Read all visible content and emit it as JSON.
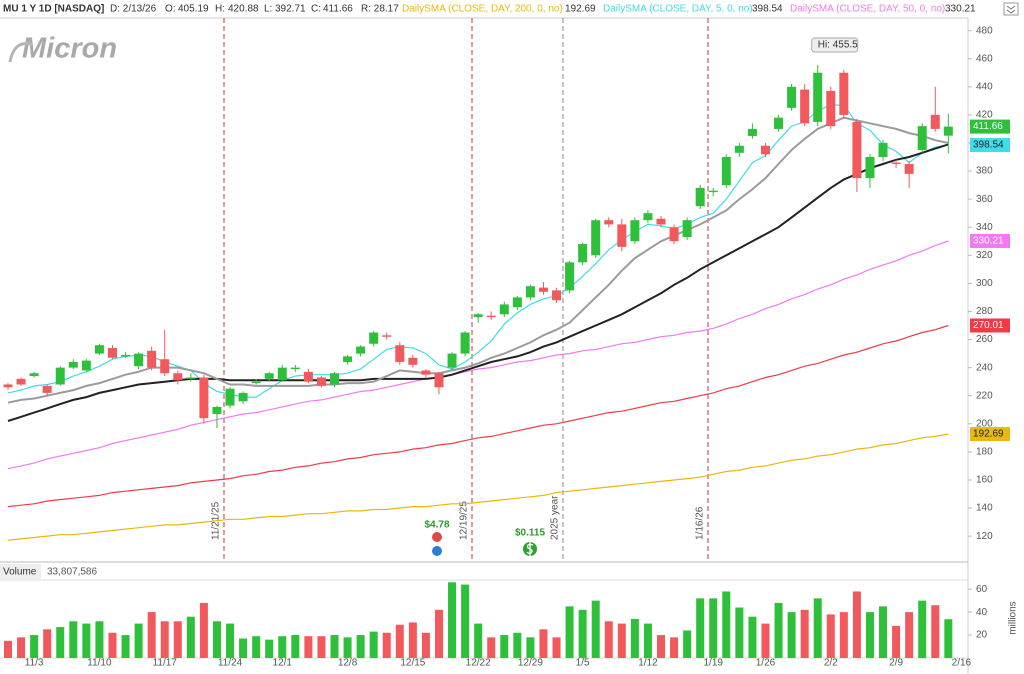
{
  "header": {
    "symbol": "MU 1 Y 1D [NASDAQ]",
    "date": "D: 2/13/26",
    "o": "O:",
    "h": "H:",
    "l": "L:",
    "c": "C:",
    "range": "R: 28.17",
    "volume_title": "Volume",
    "volume_total": "33,807,586"
  },
  "logo": "Micron",
  "chart_data": [
    {
      "type": "candlestick",
      "categories": [
        null,
        null,
        "11/3",
        null,
        null,
        null,
        null,
        "11/10",
        null,
        null,
        null,
        null,
        "11/17",
        null,
        null,
        null,
        null,
        "11/24",
        null,
        null,
        null,
        "12/1",
        null,
        null,
        null,
        null,
        "12/8",
        null,
        null,
        null,
        null,
        "12/15",
        null,
        null,
        null,
        null,
        "12/22",
        null,
        null,
        null,
        "12/29",
        null,
        null,
        null,
        "1/5",
        null,
        null,
        null,
        null,
        "1/12",
        null,
        null,
        null,
        null,
        "1/19",
        null,
        null,
        null,
        "1/26",
        null,
        null,
        null,
        null,
        "2/2",
        null,
        null,
        null,
        null,
        "2/9",
        null,
        null,
        null,
        null,
        "2/16"
      ],
      "open": [
        228,
        232,
        234,
        227,
        228,
        240,
        238,
        250,
        254,
        248,
        241,
        252,
        246,
        236,
        232,
        233,
        207,
        213,
        216,
        229,
        232,
        231,
        239,
        237,
        233,
        228,
        244,
        250,
        257,
        263,
        256,
        247,
        238,
        236,
        240,
        250,
        276,
        277,
        278,
        283,
        290,
        297,
        295,
        295,
        315,
        320,
        345,
        342,
        330,
        345,
        346,
        340,
        333,
        355,
        365,
        370,
        393,
        405,
        398,
        410,
        425,
        438,
        415,
        437,
        450,
        415,
        375,
        390,
        386,
        385,
        395,
        420,
        405.19,
        null
      ],
      "high": [
        229,
        233,
        237,
        228,
        241,
        246,
        246,
        257,
        256,
        251,
        251,
        255,
        267,
        238,
        236,
        235,
        213,
        226,
        223,
        232,
        237,
        242,
        242,
        239,
        234,
        237,
        249,
        256,
        266,
        265,
        258,
        249,
        239,
        237,
        251,
        266,
        279,
        280,
        287,
        291,
        299,
        301,
        297,
        316,
        329,
        346,
        347,
        346,
        347,
        352,
        348,
        342,
        347,
        370,
        368,
        392,
        400,
        414,
        400,
        420,
        442,
        442,
        455.5,
        440,
        452,
        417,
        392,
        402,
        388,
        387,
        414,
        440,
        420.88,
        null
      ],
      "low": [
        224,
        227,
        233,
        220,
        227,
        239,
        237,
        249,
        246,
        247,
        239,
        238,
        234,
        228,
        230,
        200,
        197,
        211,
        214,
        228,
        230,
        230,
        237,
        229,
        226,
        226,
        242,
        248,
        255,
        260,
        242,
        240,
        233,
        221,
        238,
        248,
        272,
        274,
        276,
        281,
        288,
        292,
        286,
        293,
        313,
        318,
        340,
        323,
        328,
        343,
        340,
        328,
        331,
        353,
        362,
        368,
        390,
        403,
        390,
        408,
        423,
        412,
        412,
        410,
        418,
        365,
        368,
        387,
        382,
        368,
        393,
        408,
        392.71,
        null
      ],
      "close": [
        226,
        228,
        236,
        222,
        240,
        244,
        245,
        256,
        247,
        249,
        250,
        240,
        236,
        231,
        233,
        204,
        212,
        225,
        222,
        230,
        236,
        240,
        240,
        230,
        227,
        236,
        248,
        255,
        265,
        262,
        244,
        242,
        235,
        226,
        250,
        265,
        278,
        276,
        285,
        290,
        298,
        294,
        288,
        315,
        328,
        345,
        342,
        326,
        345,
        350,
        342,
        330,
        345,
        368,
        366,
        390,
        398,
        410,
        392,
        418,
        440,
        414,
        450,
        412,
        420,
        375,
        390,
        400,
        385,
        378,
        412,
        410,
        411.66,
        null
      ],
      "up_color": "#2ec03a",
      "down_color": "#f2595c",
      "series": [
        {
          "name": "DailySMA (CLOSE, DAY, 200, 0, no)",
          "color": "#e8b80c",
          "values": [
            117,
            118,
            119,
            120,
            121,
            121,
            122,
            123,
            124,
            125,
            126,
            127,
            128,
            128,
            129,
            130,
            131,
            132,
            132,
            133,
            134,
            134,
            135,
            136,
            136,
            137,
            138,
            138,
            139,
            139,
            140,
            141,
            141,
            142,
            143,
            143,
            144,
            145,
            146,
            147,
            148,
            149,
            151,
            152,
            153,
            154,
            155,
            156,
            157,
            158,
            159,
            160,
            161,
            162,
            164,
            166,
            167,
            169,
            170,
            172,
            174,
            175,
            177,
            178,
            180,
            182,
            183,
            185,
            186,
            188,
            190,
            191,
            192.69,
            null
          ]
        },
        {
          "name": "DailySMA (CLOSE, DAY, 5, 0, no)",
          "color": "#3fdcea",
          "values": [
            222,
            224,
            227,
            228,
            230,
            234,
            237,
            241,
            246,
            248,
            249,
            248,
            244,
            241,
            238,
            229,
            223,
            221,
            219,
            219,
            225,
            231,
            234,
            235,
            235,
            235,
            236,
            239,
            246,
            253,
            255,
            254,
            250,
            242,
            239,
            244,
            251,
            259,
            271,
            279,
            285,
            289,
            291,
            297,
            305,
            314,
            324,
            331,
            337,
            342,
            341,
            339,
            342,
            347,
            350,
            360,
            373,
            386,
            391,
            402,
            412,
            415,
            423,
            427,
            427,
            414,
            409,
            399,
            394,
            386,
            393,
            397,
            398.54,
            null
          ]
        },
        {
          "name": "DailySMA (CLOSE, DAY, 50, 0, no)",
          "color": "#f07af0",
          "values": [
            168,
            170,
            172,
            175,
            177,
            179,
            181,
            183,
            186,
            188,
            190,
            192,
            194,
            196,
            199,
            201,
            203,
            205,
            207,
            208,
            210,
            212,
            214,
            216,
            217,
            219,
            221,
            223,
            224,
            226,
            228,
            230,
            232,
            233,
            235,
            237,
            239,
            240,
            242,
            244,
            245,
            247,
            249,
            250,
            252,
            253,
            255,
            257,
            258,
            260,
            262,
            263,
            265,
            266,
            268,
            271,
            275,
            278,
            282,
            285,
            289,
            292,
            296,
            299,
            303,
            306,
            310,
            313,
            316,
            320,
            323,
            327,
            330.21,
            null
          ]
        },
        {
          "color": "#ee3b46",
          "values": [
            141,
            142,
            143,
            145,
            146,
            147,
            148,
            149,
            151,
            152,
            153,
            154,
            155,
            156,
            158,
            159,
            160,
            161,
            163,
            164,
            166,
            167,
            169,
            170,
            172,
            173,
            175,
            176,
            178,
            179,
            180,
            182,
            183,
            185,
            186,
            188,
            190,
            191,
            193,
            195,
            197,
            199,
            200,
            202,
            204,
            206,
            208,
            209,
            211,
            213,
            215,
            216,
            218,
            220,
            222,
            225,
            227,
            230,
            233,
            235,
            238,
            241,
            243,
            246,
            249,
            251,
            254,
            257,
            259,
            262,
            265,
            267,
            270.01,
            null
          ]
        },
        {
          "color": "#222222",
          "values": [
            202,
            205,
            208,
            211,
            214,
            217,
            219,
            222,
            224,
            226,
            228,
            229,
            230,
            231,
            232,
            232,
            232,
            231,
            231,
            231,
            231,
            231,
            231,
            231,
            231,
            231,
            231,
            231,
            232,
            232,
            232,
            232,
            232,
            233,
            235,
            238,
            241,
            244,
            246,
            248,
            251,
            255,
            258,
            262,
            266,
            270,
            274,
            278,
            283,
            288,
            293,
            299,
            304,
            310,
            315,
            320,
            325,
            330,
            335,
            340,
            347,
            354,
            361,
            368,
            374,
            378,
            382,
            385,
            388,
            390,
            393,
            396,
            399,
            null
          ]
        },
        {
          "color": "#9b9b9b",
          "values": [
            215,
            217,
            218,
            220,
            222,
            224,
            227,
            229,
            232,
            235,
            237,
            240,
            240,
            240,
            238,
            236,
            232,
            228,
            228,
            227,
            227,
            227,
            227,
            227,
            228,
            228,
            229,
            229,
            230,
            234,
            238,
            237,
            236,
            236,
            238,
            240,
            243,
            247,
            250,
            254,
            258,
            263,
            267,
            272,
            281,
            290,
            299,
            309,
            318,
            324,
            330,
            334,
            338,
            342,
            347,
            352,
            360,
            367,
            375,
            385,
            395,
            403,
            410,
            414,
            418,
            416,
            414,
            412,
            410,
            407,
            405,
            402,
            400,
            null
          ]
        }
      ],
      "ylim": [
        103,
        489
      ],
      "yticks": [
        120,
        140,
        160,
        180,
        200,
        220,
        240,
        260,
        280,
        300,
        320,
        340,
        360,
        380,
        400,
        420,
        440,
        460,
        480
      ],
      "annotation": "Hi: 455.5",
      "events": [
        "11/21/25",
        "12/19/25",
        "2025 year",
        "1/16/26"
      ],
      "dividends": [
        "$4.78",
        "$0.115"
      ]
    },
    {
      "type": "bar",
      "values": [
        15,
        18,
        20,
        25,
        27,
        32,
        30,
        32,
        22,
        20,
        30,
        40,
        32,
        32,
        36,
        48,
        32,
        30,
        17,
        19,
        16,
        19,
        20,
        19,
        19,
        20,
        18,
        20,
        23,
        22,
        29,
        31,
        22,
        42,
        66,
        64,
        30,
        18,
        20,
        22,
        18,
        25,
        18,
        45,
        42,
        50,
        32,
        30,
        34,
        30,
        20,
        18,
        24,
        52,
        52,
        58,
        44,
        36,
        30,
        48,
        40,
        42,
        52,
        38,
        40,
        58,
        40,
        45,
        28,
        40,
        50,
        46,
        33.807586,
        null
      ],
      "ylim": [
        0,
        68
      ],
      "yticks": [
        20,
        40,
        60
      ],
      "y_label": "millions"
    }
  ]
}
